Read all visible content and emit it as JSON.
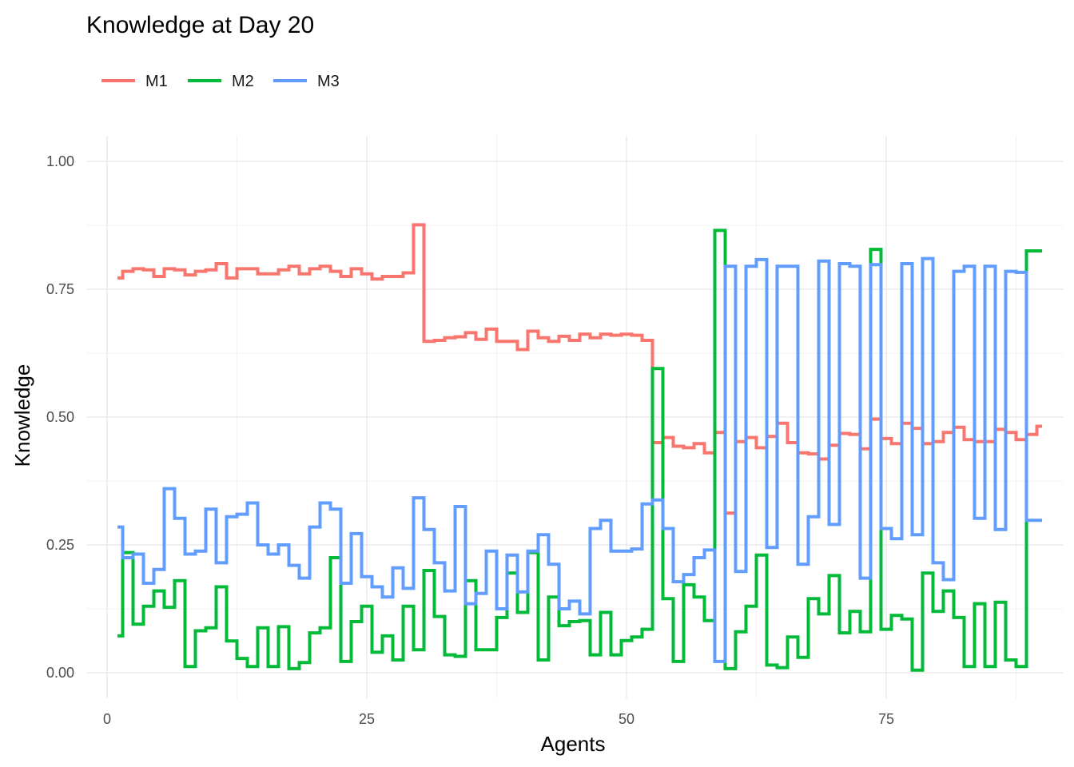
{
  "chart_data": {
    "type": "line",
    "line_style": "step",
    "title": "Knowledge at Day 20",
    "xlabel": "Agents",
    "ylabel": "Knowledge",
    "xlim": [
      -2,
      92
    ],
    "ylim": [
      -0.05,
      1.05
    ],
    "x_ticks": [
      0,
      25,
      50,
      75
    ],
    "y_ticks": [
      0.0,
      0.25,
      0.5,
      0.75,
      1.0
    ],
    "y_tick_labels": [
      "0.00",
      "0.25",
      "0.50",
      "0.75",
      "1.00"
    ],
    "grid": true,
    "legend_position": "top-left",
    "series": [
      {
        "name": "M1",
        "color": "#F8766D",
        "x": [
          1,
          2,
          3,
          4,
          5,
          6,
          7,
          8,
          9,
          10,
          11,
          12,
          13,
          14,
          15,
          16,
          17,
          18,
          19,
          20,
          21,
          22,
          23,
          24,
          25,
          26,
          27,
          28,
          29,
          30,
          31,
          32,
          33,
          34,
          35,
          36,
          37,
          38,
          39,
          40,
          41,
          42,
          43,
          44,
          45,
          46,
          47,
          48,
          49,
          50,
          51,
          52,
          53,
          54,
          55,
          56,
          57,
          58,
          59,
          60,
          61,
          62,
          63,
          64,
          65,
          66,
          67,
          68,
          69,
          70,
          71,
          72,
          73,
          74,
          75,
          76,
          77,
          78,
          79,
          80,
          81,
          82,
          83,
          84,
          85,
          86,
          87,
          88,
          89,
          90
        ],
        "y": [
          0.772,
          0.785,
          0.79,
          0.788,
          0.775,
          0.79,
          0.788,
          0.778,
          0.785,
          0.788,
          0.8,
          0.772,
          0.79,
          0.79,
          0.78,
          0.78,
          0.788,
          0.795,
          0.78,
          0.79,
          0.795,
          0.785,
          0.775,
          0.79,
          0.78,
          0.77,
          0.775,
          0.775,
          0.782,
          0.876,
          0.648,
          0.65,
          0.655,
          0.657,
          0.665,
          0.652,
          0.672,
          0.648,
          0.648,
          0.632,
          0.668,
          0.655,
          0.648,
          0.658,
          0.65,
          0.662,
          0.655,
          0.662,
          0.66,
          0.662,
          0.66,
          0.65,
          0.45,
          0.46,
          0.443,
          0.44,
          0.448,
          0.43,
          0.47,
          0.312,
          0.452,
          0.46,
          0.44,
          0.462,
          0.488,
          0.45,
          0.43,
          0.428,
          0.418,
          0.445,
          0.468,
          0.466,
          0.438,
          0.496,
          0.458,
          0.448,
          0.488,
          0.478,
          0.448,
          0.452,
          0.47,
          0.48,
          0.456,
          0.452,
          0.452,
          0.476,
          0.47,
          0.456,
          0.466,
          0.482
        ]
      },
      {
        "name": "M2",
        "color": "#00BA38",
        "x": [
          1,
          2,
          3,
          4,
          5,
          6,
          7,
          8,
          9,
          10,
          11,
          12,
          13,
          14,
          15,
          16,
          17,
          18,
          19,
          20,
          21,
          22,
          23,
          24,
          25,
          26,
          27,
          28,
          29,
          30,
          31,
          32,
          33,
          34,
          35,
          36,
          37,
          38,
          39,
          40,
          41,
          42,
          43,
          44,
          45,
          46,
          47,
          48,
          49,
          50,
          51,
          52,
          53,
          54,
          55,
          56,
          57,
          58,
          59,
          60,
          61,
          62,
          63,
          64,
          65,
          66,
          67,
          68,
          69,
          70,
          71,
          72,
          73,
          74,
          75,
          76,
          77,
          78,
          79,
          80,
          81,
          82,
          83,
          84,
          85,
          86,
          87,
          88,
          89,
          90
        ],
        "y": [
          0.072,
          0.235,
          0.095,
          0.13,
          0.16,
          0.128,
          0.18,
          0.012,
          0.082,
          0.088,
          0.168,
          0.062,
          0.028,
          0.012,
          0.088,
          0.012,
          0.09,
          0.008,
          0.02,
          0.078,
          0.088,
          0.225,
          0.022,
          0.1,
          0.13,
          0.04,
          0.072,
          0.025,
          0.13,
          0.045,
          0.2,
          0.11,
          0.035,
          0.032,
          0.18,
          0.045,
          0.045,
          0.108,
          0.195,
          0.118,
          0.235,
          0.025,
          0.148,
          0.092,
          0.1,
          0.102,
          0.035,
          0.118,
          0.035,
          0.063,
          0.07,
          0.085,
          0.595,
          0.145,
          0.022,
          0.172,
          0.148,
          0.102,
          0.865,
          0.008,
          0.08,
          0.13,
          0.23,
          0.015,
          0.01,
          0.07,
          0.03,
          0.145,
          0.115,
          0.19,
          0.078,
          0.12,
          0.08,
          0.828,
          0.085,
          0.112,
          0.105,
          0.005,
          0.195,
          0.12,
          0.16,
          0.108,
          0.012,
          0.135,
          0.012,
          0.138,
          0.025,
          0.012,
          0.825,
          0.825
        ]
      },
      {
        "name": "M3",
        "color": "#619CFF",
        "x": [
          1,
          2,
          3,
          4,
          5,
          6,
          7,
          8,
          9,
          10,
          11,
          12,
          13,
          14,
          15,
          16,
          17,
          18,
          19,
          20,
          21,
          22,
          23,
          24,
          25,
          26,
          27,
          28,
          29,
          30,
          31,
          32,
          33,
          34,
          35,
          36,
          37,
          38,
          39,
          40,
          41,
          42,
          43,
          44,
          45,
          46,
          47,
          48,
          49,
          50,
          51,
          52,
          53,
          54,
          55,
          56,
          57,
          58,
          59,
          60,
          61,
          62,
          63,
          64,
          65,
          66,
          67,
          68,
          69,
          70,
          71,
          72,
          73,
          74,
          75,
          76,
          77,
          78,
          79,
          80,
          81,
          82,
          83,
          84,
          85,
          86,
          87,
          88,
          89,
          90
        ],
        "y": [
          0.285,
          0.225,
          0.232,
          0.175,
          0.202,
          0.36,
          0.302,
          0.232,
          0.238,
          0.32,
          0.215,
          0.305,
          0.31,
          0.332,
          0.25,
          0.232,
          0.25,
          0.21,
          0.185,
          0.285,
          0.332,
          0.32,
          0.175,
          0.272,
          0.188,
          0.168,
          0.148,
          0.205,
          0.165,
          0.342,
          0.28,
          0.215,
          0.16,
          0.325,
          0.135,
          0.155,
          0.238,
          0.125,
          0.23,
          0.158,
          0.238,
          0.27,
          0.212,
          0.125,
          0.14,
          0.115,
          0.282,
          0.298,
          0.238,
          0.238,
          0.242,
          0.33,
          0.338,
          0.282,
          0.178,
          0.192,
          0.225,
          0.24,
          0.022,
          0.795,
          0.198,
          0.795,
          0.808,
          0.245,
          0.795,
          0.795,
          0.212,
          0.305,
          0.805,
          0.29,
          0.8,
          0.795,
          0.185,
          0.798,
          0.282,
          0.262,
          0.8,
          0.27,
          0.81,
          0.215,
          0.182,
          0.785,
          0.795,
          0.302,
          0.795,
          0.28,
          0.785,
          0.783,
          0.298,
          0.298
        ]
      }
    ]
  }
}
